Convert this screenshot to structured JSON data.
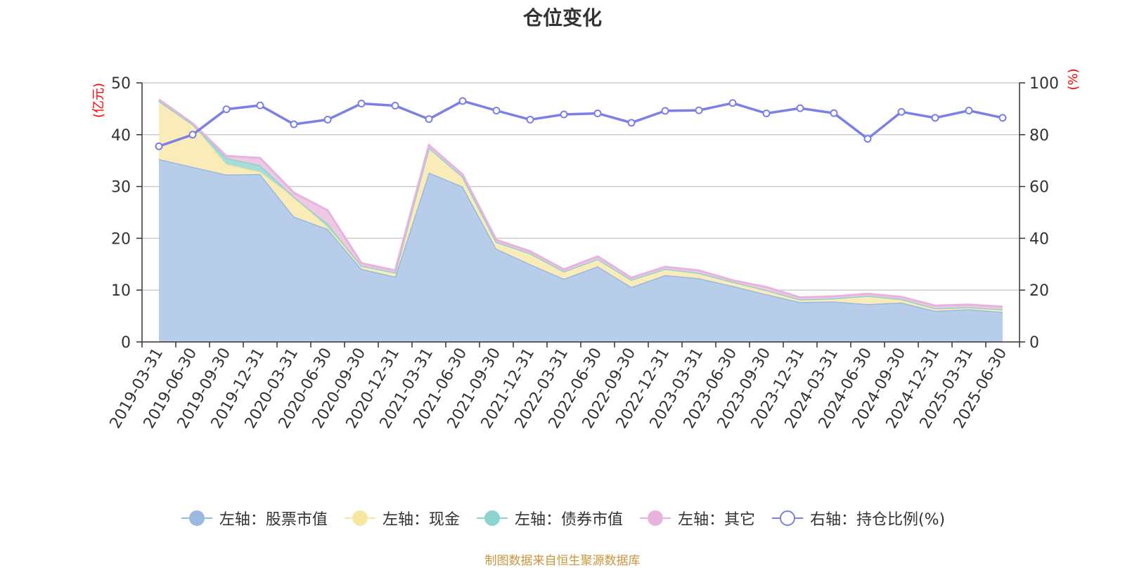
{
  "chart_data": {
    "type": "area",
    "title": "仓位变化",
    "left_axis_unit": "(亿元)",
    "right_axis_unit": "(%)",
    "categories": [
      "2019-03-31",
      "2019-06-30",
      "2019-09-30",
      "2019-12-31",
      "2020-03-31",
      "2020-06-30",
      "2020-09-30",
      "2020-12-31",
      "2021-03-31",
      "2021-06-30",
      "2021-09-30",
      "2021-12-31",
      "2022-03-31",
      "2022-06-30",
      "2022-09-30",
      "2022-12-31",
      "2023-03-31",
      "2023-06-30",
      "2023-09-30",
      "2023-12-31",
      "2024-03-31",
      "2024-06-30",
      "2024-09-30",
      "2024-12-31",
      "2025-03-31",
      "2025-06-30"
    ],
    "left_ylim": [
      0,
      50
    ],
    "left_ticks": [
      0,
      10,
      20,
      30,
      40,
      50
    ],
    "right_ylim": [
      0,
      100
    ],
    "right_ticks": [
      0,
      20,
      40,
      60,
      80,
      100
    ],
    "stacked_series": [
      {
        "name": "左轴：股票市值",
        "color": "#9ab8e0",
        "fill": "#b8cdea",
        "values": [
          35.3,
          33.8,
          32.3,
          32.4,
          24.2,
          21.8,
          14.1,
          12.6,
          32.7,
          30.0,
          18.0,
          15.0,
          12.2,
          14.6,
          10.6,
          12.9,
          12.3,
          10.8,
          9.2,
          7.7,
          7.8,
          7.3,
          7.6,
          6.0,
          6.3,
          5.8
        ],
        "value_labels": [
          "35.3",
          "33.8",
          "32.3",
          "32.4",
          "24.2",
          "21.8",
          "14.1",
          "12.6",
          "32.7",
          "30.0",
          "18.0",
          "15.0",
          "12.2",
          "14.6",
          "10.6",
          "12.9",
          "12.3",
          "10.8",
          "9.2",
          "7.7",
          "7.8",
          "7.3",
          "7.6",
          "6.0",
          "6.3",
          "5.8"
        ]
      },
      {
        "name": "左轴：现金",
        "color": "#f5e6a3",
        "fill": "#faecb8",
        "values": [
          11.2,
          8.2,
          2.0,
          0.4,
          3.8,
          0.4,
          0.6,
          0.8,
          4.8,
          1.9,
          1.3,
          2.1,
          1.4,
          1.4,
          1.4,
          1.2,
          1.0,
          0.8,
          0.8,
          0.5,
          0.6,
          1.6,
          0.5,
          0.5,
          0.4,
          0.5
        ],
        "value_labels": [
          "11.2",
          "8.2",
          "2.0",
          "0.4",
          "3.8",
          "0.4",
          "0.6",
          "0.8",
          "4.8",
          "1.9",
          "1.3",
          "2.1",
          "1.4",
          "1.4",
          "1.4",
          "1.2",
          "1.0",
          "0.8",
          "0.8",
          "0.5",
          "0.6",
          "1.6",
          "0.5",
          "0.5",
          "0.4",
          "0.5"
        ]
      },
      {
        "name": "左轴：债券市值",
        "color": "#8dd3cf",
        "fill": "#a8dcd6",
        "values": [
          0,
          0,
          1.2,
          1.3,
          0,
          0.6,
          0,
          0,
          0,
          0,
          0,
          0,
          0,
          0,
          0,
          0,
          0,
          0,
          0,
          0,
          0,
          0,
          0.2,
          0,
          0,
          0
        ],
        "value_labels": [
          "0",
          "0",
          "1.2",
          "1.3",
          "0",
          "0.6",
          "0",
          "0",
          "0",
          "0",
          "0",
          "0",
          "0",
          "0",
          "0",
          "0",
          "0",
          "0",
          "0",
          "0",
          "0",
          "0",
          "0.2",
          "0",
          "0",
          "0"
        ]
      },
      {
        "name": "左轴：其它",
        "color": "#e6b4dc",
        "fill": "#efc8e4",
        "values": [
          0.3,
          0.2,
          0.4,
          1.4,
          0.8,
          2.6,
          0.5,
          0.4,
          0.5,
          0.4,
          0.4,
          0.4,
          0.4,
          0.5,
          0.4,
          0.4,
          0.5,
          0.3,
          0.6,
          0.4,
          0.4,
          0.4,
          0.4,
          0.5,
          0.5,
          0.5
        ],
        "value_labels": [
          "0.3",
          "0.2",
          "0.4",
          "1.4",
          "0.8",
          "2.6",
          "0.5",
          "0.4",
          "0.5",
          "0.4",
          "0.4",
          "0.4",
          "0.4",
          "0.5",
          "0.4",
          "0.4",
          "0.5",
          "0.3",
          "0.6",
          "0.4",
          "0.4",
          "0.4",
          "0.4",
          "0.5",
          "0.5",
          "0.5"
        ]
      }
    ],
    "line_series": {
      "name": "右轴：持仓比例(%)",
      "color": "#7b7fe8",
      "values": [
        75.5,
        80.0,
        89.8,
        91.3,
        84.0,
        85.8,
        92.0,
        91.2,
        86.0,
        93.0,
        89.3,
        85.8,
        87.8,
        88.2,
        84.6,
        89.2,
        89.4,
        92.2,
        88.2,
        90.2,
        88.3,
        78.4,
        88.8,
        86.5,
        89.3,
        86.5
      ],
      "value_labels": [
        "75.5",
        "80.0",
        "89.8",
        "91.3",
        "84.0",
        "85.8",
        "92.0",
        "91.2",
        "86.0",
        "93.0",
        "89.3",
        "85.8",
        "87.8",
        "88.2",
        "84.6",
        "89.2",
        "89.4",
        "92.2",
        "88.2",
        "90.2",
        "88.3",
        "78.4",
        "88.8",
        "86.5",
        "89.3",
        "86.5"
      ]
    },
    "grid": true,
    "legend_position": "bottom"
  },
  "footer": "制图数据来自恒生聚源数据库"
}
